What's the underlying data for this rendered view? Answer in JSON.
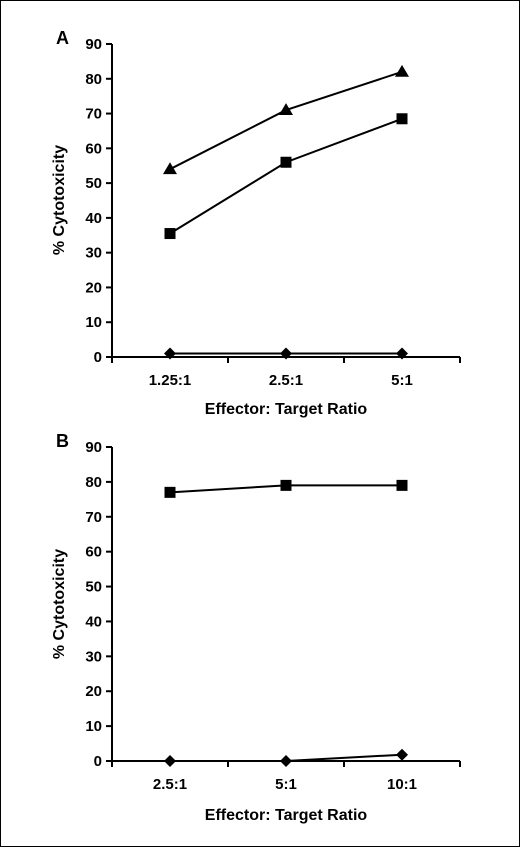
{
  "chart_data": [
    {
      "type": "line",
      "panel": "A",
      "categories": [
        "1.25:1",
        "2.5:1",
        "5:1"
      ],
      "series": [
        {
          "marker": "triangle",
          "values": [
            54,
            71,
            82
          ]
        },
        {
          "marker": "square",
          "values": [
            35.5,
            56,
            68.5
          ]
        },
        {
          "marker": "diamond",
          "values": [
            1,
            1,
            1
          ]
        }
      ],
      "xlabel": "Effector: Target Ratio",
      "ylabel": "% Cytotoxicity",
      "ylim": [
        0,
        90
      ],
      "yticks": [
        "0",
        "10",
        "20",
        "30",
        "40",
        "50",
        "60",
        "70",
        "80",
        "90"
      ],
      "grid": false
    },
    {
      "type": "line",
      "panel": "B",
      "categories": [
        "2.5:1",
        "5:1",
        "10:1"
      ],
      "series": [
        {
          "marker": "square",
          "values": [
            77,
            79,
            79
          ]
        },
        {
          "marker": "diamond",
          "values": [
            0,
            0,
            1.8
          ]
        }
      ],
      "xlabel": "Effector: Target Ratio",
      "ylabel": "% Cytotoxicity",
      "ylim": [
        0,
        90
      ],
      "yticks": [
        "0",
        "10",
        "20",
        "30",
        "40",
        "50",
        "60",
        "70",
        "80",
        "90"
      ],
      "grid": false
    }
  ]
}
